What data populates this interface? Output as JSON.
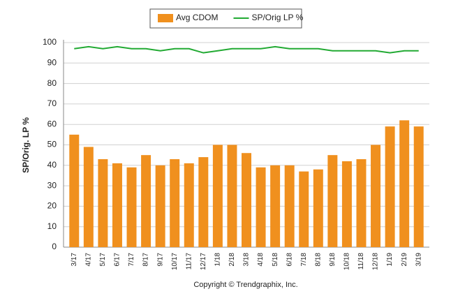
{
  "chart_data": {
    "type": "bar",
    "y_label": "SP/Orig. LP %",
    "footer": "Copyright © Trendgraphix, Inc.",
    "categories": [
      "3/17",
      "4/17",
      "5/17",
      "6/17",
      "7/17",
      "8/17",
      "9/17",
      "10/17",
      "11/17",
      "12/17",
      "1/18",
      "2/18",
      "3/18",
      "4/18",
      "5/18",
      "6/18",
      "7/18",
      "8/18",
      "9/18",
      "10/18",
      "11/18",
      "12/18",
      "1/19",
      "2/19",
      "3/19"
    ],
    "series": [
      {
        "name": "Avg CDOM",
        "type": "bar",
        "color": "#f0901e",
        "values": [
          55,
          49,
          43,
          41,
          39,
          45,
          40,
          43,
          41,
          44,
          50,
          50,
          46,
          39,
          40,
          40,
          37,
          38,
          45,
          42,
          43,
          50,
          59,
          62,
          59
        ]
      },
      {
        "name": "SP/Orig LP %",
        "type": "line",
        "color": "#22aa33",
        "values": [
          97,
          98,
          97,
          98,
          97,
          97,
          96,
          97,
          97,
          95,
          96,
          97,
          97,
          97,
          98,
          97,
          97,
          97,
          96,
          96,
          96,
          96,
          95,
          96,
          96
        ]
      }
    ],
    "ylim": [
      0,
      100
    ],
    "yticks": [
      0,
      10,
      20,
      30,
      40,
      50,
      60,
      70,
      80,
      90,
      100
    ],
    "grid": true,
    "legend": "top"
  }
}
